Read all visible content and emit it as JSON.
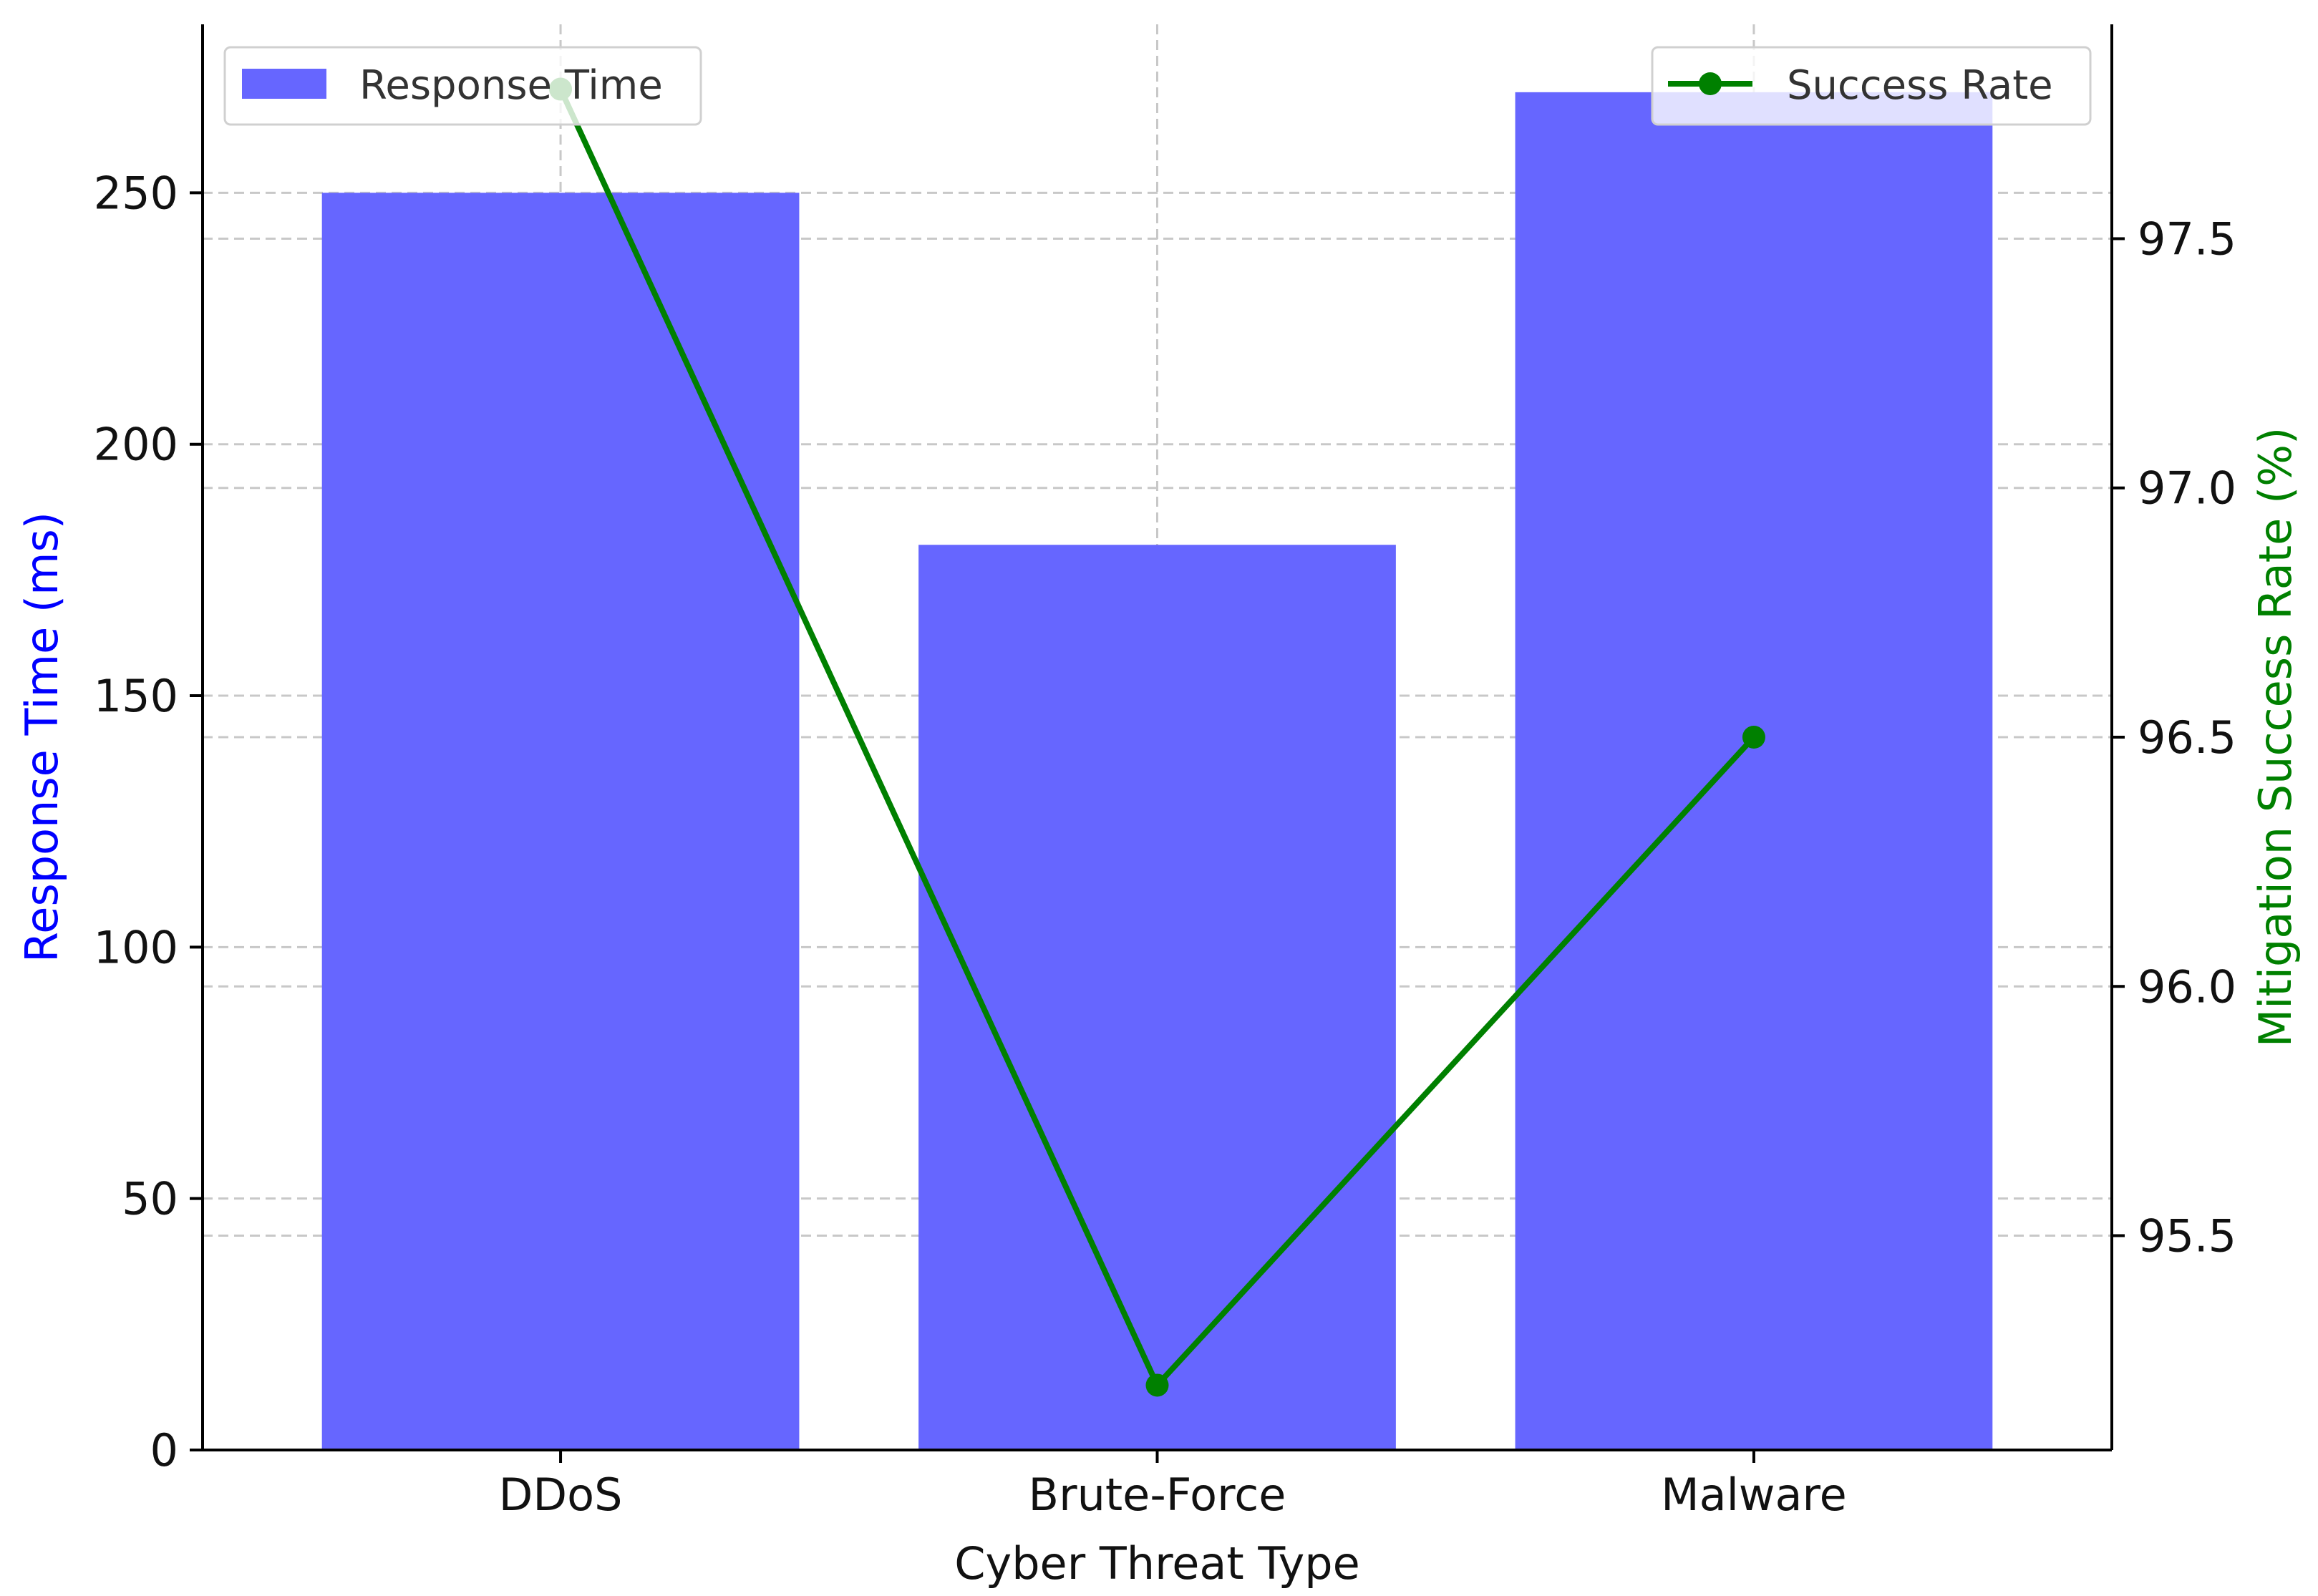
{
  "chart_data": {
    "type": "bar",
    "categories": [
      "DDoS",
      "Brute-Force",
      "Malware"
    ],
    "xlabel": "Cyber Threat Type",
    "title": "",
    "series": [
      {
        "name": "Response Time",
        "type": "bar",
        "axis": "left",
        "color": "#6666ff",
        "values": [
          250,
          180,
          270
        ]
      },
      {
        "name": "Success Rate",
        "type": "line",
        "axis": "right",
        "color": "#008000",
        "marker": "circle",
        "values": [
          97.8,
          95.2,
          96.5
        ]
      }
    ],
    "y_left": {
      "label": "Response Time (ms)",
      "label_color": "#0000ff",
      "ylim": [
        0,
        283.5
      ],
      "ticks": [
        0,
        50,
        100,
        150,
        200,
        250
      ],
      "tick_labels": [
        "0",
        "50",
        "100",
        "150",
        "200",
        "250"
      ]
    },
    "y_right": {
      "label": "Mitigation Success Rate (%)",
      "label_color": "#008000",
      "ylim": [
        95.07,
        97.93
      ],
      "ticks": [
        95.5,
        96.0,
        96.5,
        97.0,
        97.5
      ],
      "tick_labels": [
        "95.5",
        "96.0",
        "96.5",
        "97.0",
        "97.5"
      ]
    },
    "grid": true,
    "legend": [
      {
        "series": "Response Time",
        "placement": "top-left"
      },
      {
        "series": "Success Rate",
        "placement": "top-right"
      }
    ]
  }
}
